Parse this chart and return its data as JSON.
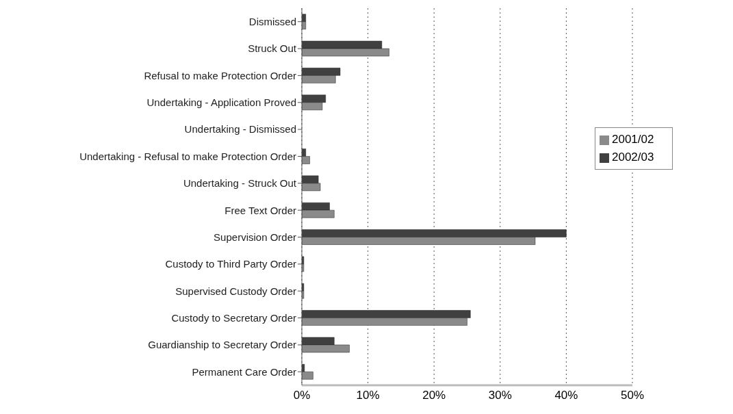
{
  "chart_data": {
    "type": "bar",
    "orientation": "horizontal",
    "categories": [
      "Dismissed",
      "Struck Out",
      "Refusal to make Protection Order",
      "Undertaking - Application Proved",
      "Undertaking - Dismissed",
      "Undertaking - Refusal to make Protection Order",
      "Undertaking -  Struck Out",
      "Free Text Order",
      "Supervision Order",
      "Custody to Third Party Order",
      "Supervised Custody Order",
      "Custody to Secretary Order",
      "Guardianship to Secretary Order",
      "Permanent Care Order"
    ],
    "series": [
      {
        "name": "2002/03",
        "color": "#404040",
        "values": [
          0.6,
          12.1,
          5.8,
          3.6,
          0,
          0.6,
          2.5,
          4.2,
          40.0,
          0.3,
          0.3,
          25.5,
          4.9,
          0.4
        ]
      },
      {
        "name": "2001/02",
        "color": "#8a8a8a",
        "values": [
          0.6,
          13.2,
          5.1,
          3.1,
          0,
          1.2,
          2.8,
          4.9,
          35.3,
          0.3,
          0.3,
          25.0,
          7.2,
          1.7
        ]
      }
    ],
    "xlim": [
      0,
      50
    ],
    "xticks": [
      {
        "value": 0,
        "label": "0%"
      },
      {
        "value": 10,
        "label": "10%"
      },
      {
        "value": 20,
        "label": "20%"
      },
      {
        "value": 30,
        "label": "30%"
      },
      {
        "value": 40,
        "label": "40%"
      },
      {
        "value": 50,
        "label": "50%"
      }
    ],
    "grid": "x",
    "legend": "right"
  }
}
